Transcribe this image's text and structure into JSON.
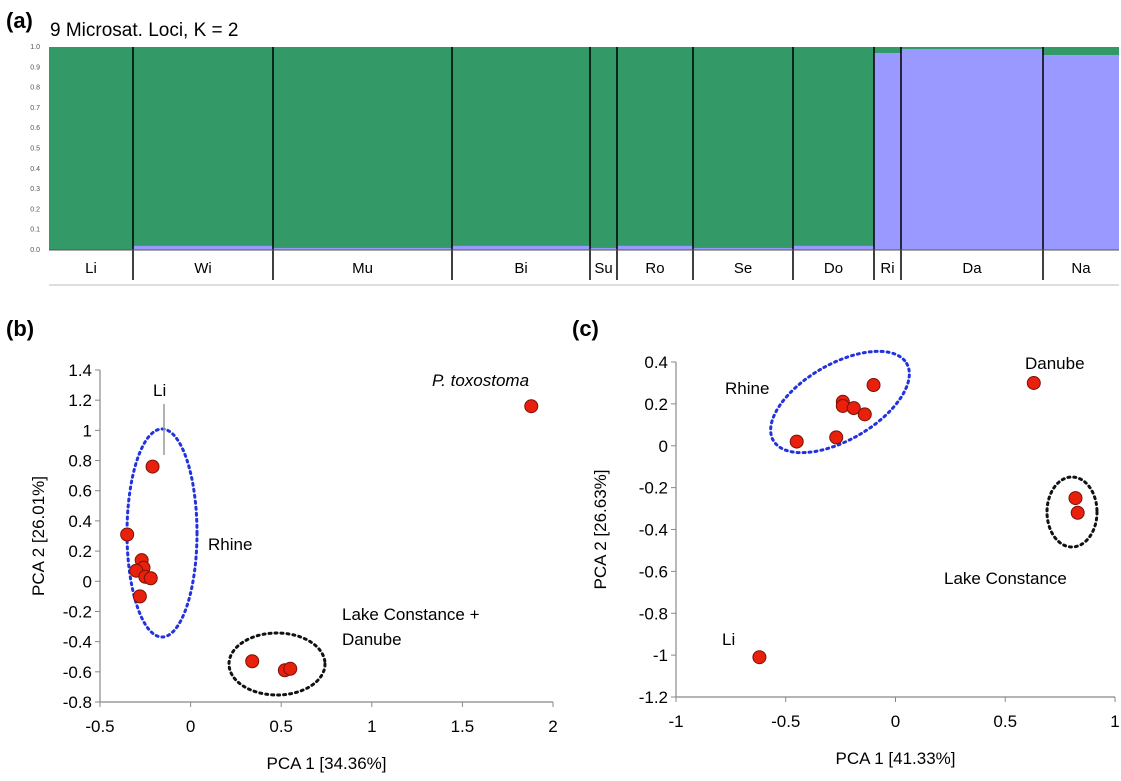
{
  "panels": {
    "a": "(a)",
    "b": "(b)",
    "c": "(c)"
  },
  "chart_data": [
    {
      "type": "bar",
      "id": "structure",
      "title": "9 Microsat. Loci, K = 2",
      "ylim": [
        0,
        1.0
      ],
      "yticks": [
        "0.0",
        "0.1",
        "0.2",
        "0.3",
        "0.4",
        "0.5",
        "0.6",
        "0.7",
        "0.8",
        "0.9",
        "1.0"
      ],
      "stacked": true,
      "colors": {
        "cluster1": "#339966",
        "cluster2": "#9999ff"
      },
      "populations": [
        {
          "name": "Li",
          "cluster2": 0.0
        },
        {
          "name": "Wi",
          "cluster2": 0.02
        },
        {
          "name": "Mu",
          "cluster2": 0.01
        },
        {
          "name": "Bi",
          "cluster2": 0.02
        },
        {
          "name": "Su",
          "cluster2": 0.01
        },
        {
          "name": "Ro",
          "cluster2": 0.02
        },
        {
          "name": "Se",
          "cluster2": 0.01
        },
        {
          "name": "Do",
          "cluster2": 0.02
        },
        {
          "name": "Ri",
          "cluster2": 0.97
        },
        {
          "name": "Da",
          "cluster2": 0.99
        },
        {
          "name": "Na",
          "cluster2": 0.96
        }
      ]
    },
    {
      "type": "scatter",
      "id": "pca_b",
      "xlabel": "PCA 1 [34.36%]",
      "ylabel": "PCA 2 [26.01%]",
      "xlim": [
        -0.5,
        2
      ],
      "ylim": [
        -0.8,
        1.4
      ],
      "xticks": [
        -0.5,
        0,
        0.5,
        1,
        1.5,
        2
      ],
      "xtick_labels": [
        "-0.5",
        "0",
        "0.5",
        "1",
        "1.5",
        "2"
      ],
      "yticks": [
        -0.8,
        -0.6,
        -0.4,
        -0.2,
        0,
        0.2,
        0.4,
        0.6,
        0.8,
        1,
        1.2,
        1.4
      ],
      "ytick_labels": [
        "-0.8",
        "-0.6",
        "-0.4",
        "-0.2",
        "0",
        "0.2",
        "0.4",
        "0.6",
        "0.8",
        "1",
        "1.2",
        "1.4"
      ],
      "point_color": "#e8200c",
      "points": [
        {
          "x": -0.21,
          "y": 0.76
        },
        {
          "x": -0.35,
          "y": 0.31
        },
        {
          "x": -0.27,
          "y": 0.14
        },
        {
          "x": -0.26,
          "y": 0.09
        },
        {
          "x": -0.3,
          "y": 0.07
        },
        {
          "x": -0.25,
          "y": 0.03
        },
        {
          "x": -0.22,
          "y": 0.02
        },
        {
          "x": -0.28,
          "y": -0.1
        },
        {
          "x": 0.34,
          "y": -0.53
        },
        {
          "x": 0.52,
          "y": -0.59
        },
        {
          "x": 0.55,
          "y": -0.58
        },
        {
          "x": 1.88,
          "y": 1.16
        }
      ],
      "annotations": {
        "li": "Li",
        "rhine": "Rhine",
        "ptox": "P. toxostoma",
        "lake1": "Lake Constance +",
        "lake2": "Danube"
      }
    },
    {
      "type": "scatter",
      "id": "pca_c",
      "xlabel": "PCA 1 [41.33%]",
      "ylabel": "PCA 2 [26.63%]",
      "xlim": [
        -1,
        1
      ],
      "ylim": [
        -1.2,
        0.4
      ],
      "xticks": [
        -1,
        -0.5,
        0,
        0.5,
        1
      ],
      "xtick_labels": [
        "-1",
        "-0.5",
        "0",
        "0.5",
        "1"
      ],
      "yticks": [
        -1.2,
        -1,
        -0.8,
        -0.6,
        -0.4,
        -0.2,
        0,
        0.2,
        0.4
      ],
      "ytick_labels": [
        "-1.2",
        "-1",
        "-0.8",
        "-0.6",
        "-0.4",
        "-0.2",
        "0",
        "0.2",
        "0.4"
      ],
      "point_color": "#e8200c",
      "points": [
        {
          "x": -0.45,
          "y": 0.02
        },
        {
          "x": -0.27,
          "y": 0.04
        },
        {
          "x": -0.24,
          "y": 0.21
        },
        {
          "x": -0.24,
          "y": 0.19
        },
        {
          "x": -0.19,
          "y": 0.18
        },
        {
          "x": -0.14,
          "y": 0.15
        },
        {
          "x": -0.1,
          "y": 0.29
        },
        {
          "x": 0.63,
          "y": 0.3
        },
        {
          "x": 0.82,
          "y": -0.25
        },
        {
          "x": 0.83,
          "y": -0.32
        },
        {
          "x": -0.62,
          "y": -1.01
        }
      ],
      "annotations": {
        "rhine": "Rhine",
        "danube": "Danube",
        "lake": "Lake Constance",
        "li": "Li"
      }
    }
  ]
}
